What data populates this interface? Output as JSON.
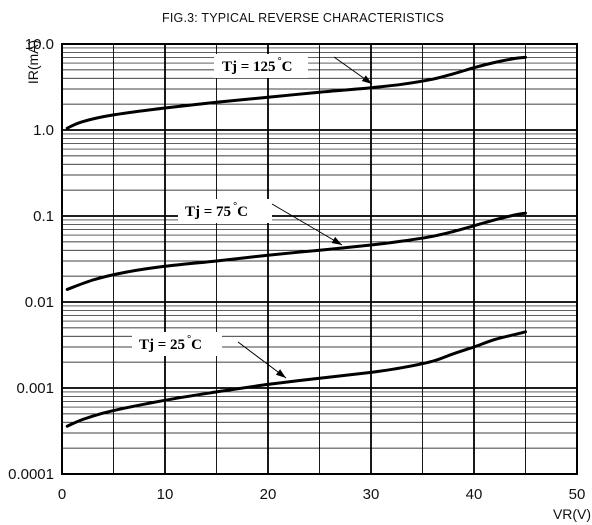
{
  "chart_data": {
    "type": "line",
    "title": "FIG.3: TYPICAL REVERSE CHARACTERISTICS",
    "xlabel": "VR(V)",
    "ylabel": "IR(mA)",
    "xlim": [
      0,
      50
    ],
    "ylim": [
      0.0001,
      10
    ],
    "yscale": "log",
    "grid": true,
    "x_ticks": [
      "0",
      "10",
      "20",
      "30",
      "40",
      "50"
    ],
    "y_ticks": [
      "10.0",
      "1.0",
      "0.1",
      "0.01",
      "0.001",
      "0.0001"
    ],
    "series": [
      {
        "label_parts": {
          "prefix": "Tj = 125",
          "degree": "°",
          "suffix": "C"
        },
        "x": [
          0.5,
          2,
          5,
          10,
          15,
          20,
          25,
          30,
          33,
          36,
          38,
          40,
          42,
          44,
          45
        ],
        "y": [
          1.05,
          1.25,
          1.5,
          1.8,
          2.1,
          2.4,
          2.75,
          3.1,
          3.4,
          3.9,
          4.5,
          5.3,
          6.1,
          6.8,
          7.0
        ]
      },
      {
        "label_parts": {
          "prefix": "Tj =  75",
          "degree": "°",
          "suffix": "C"
        },
        "x": [
          0.5,
          3,
          6,
          10,
          15,
          20,
          25,
          30,
          33,
          36,
          38,
          40,
          42,
          44,
          45
        ],
        "y": [
          0.014,
          0.018,
          0.022,
          0.026,
          0.03,
          0.035,
          0.04,
          0.046,
          0.051,
          0.058,
          0.066,
          0.077,
          0.09,
          0.103,
          0.108
        ]
      },
      {
        "label_parts": {
          "prefix": "Tj = 25",
          "degree": "°",
          "suffix": "C"
        },
        "x": [
          0.5,
          2,
          4,
          6,
          10,
          15,
          20,
          25,
          30,
          33,
          36,
          38,
          40,
          42,
          44,
          45
        ],
        "y": [
          0.00036,
          0.00043,
          0.00051,
          0.00058,
          0.00072,
          0.0009,
          0.0011,
          0.0013,
          0.00152,
          0.00172,
          0.00205,
          0.0025,
          0.003,
          0.00365,
          0.0042,
          0.0045
        ]
      }
    ]
  }
}
